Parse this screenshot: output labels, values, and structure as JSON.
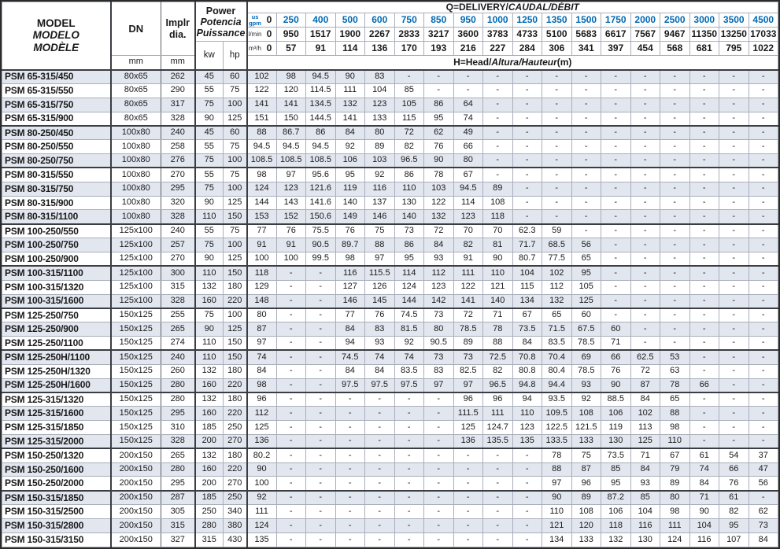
{
  "colors": {
    "accent_blue": "#0069b4",
    "stripe": "#e2e6ef"
  },
  "table": {
    "header": {
      "model": {
        "en": "MODEL",
        "es": "MODELO",
        "fr": "MODÈLE"
      },
      "dn": "DN",
      "impeller": {
        "line1": "Implr",
        "line2": "dia."
      },
      "power": {
        "en": "Power",
        "es": "Potencia",
        "fr": "Puissance"
      },
      "units": {
        "mm_dn": "mm",
        "mm_impeller": "mm",
        "kw": "kw",
        "hp": "hp"
      },
      "q_title": {
        "prefix": "Q=DELIVERY/",
        "italic": "CAUDAL/DÉBIT"
      },
      "h_title": {
        "prefix": "H=Head/",
        "italic": "Altura/Hauteur",
        "suffix": "(m)"
      },
      "flow_rows": [
        {
          "unit": "us gpm",
          "values": [
            "0",
            "250",
            "400",
            "500",
            "600",
            "750",
            "850",
            "950",
            "1000",
            "1250",
            "1350",
            "1500",
            "1750",
            "2000",
            "2500",
            "3000",
            "3500",
            "4500"
          ]
        },
        {
          "unit": "l/min",
          "values": [
            "0",
            "950",
            "1517",
            "1900",
            "2267",
            "2833",
            "3217",
            "3600",
            "3783",
            "4733",
            "5100",
            "5683",
            "6617",
            "7567",
            "9467",
            "11350",
            "13250",
            "17033"
          ]
        },
        {
          "unit": "m³/h",
          "values": [
            "0",
            "57",
            "91",
            "114",
            "136",
            "170",
            "193",
            "216",
            "227",
            "284",
            "306",
            "341",
            "397",
            "454",
            "568",
            "681",
            "795",
            "1022"
          ]
        }
      ]
    },
    "rows": [
      {
        "model": "PSM 65-315/450",
        "dn": "80x65",
        "dia": "262",
        "kw": "45",
        "hp": "60",
        "group": false,
        "head": [
          "102",
          "98",
          "94.5",
          "90",
          "83",
          "-",
          "-",
          "-",
          "-",
          "-",
          "-",
          "-",
          "-",
          "-",
          "-",
          "-",
          "-",
          "-"
        ]
      },
      {
        "model": "PSM 65-315/550",
        "dn": "80x65",
        "dia": "290",
        "kw": "55",
        "hp": "75",
        "group": false,
        "head": [
          "122",
          "120",
          "114.5",
          "111",
          "104",
          "85",
          "-",
          "-",
          "-",
          "-",
          "-",
          "-",
          "-",
          "-",
          "-",
          "-",
          "-",
          "-"
        ]
      },
      {
        "model": "PSM 65-315/750",
        "dn": "80x65",
        "dia": "317",
        "kw": "75",
        "hp": "100",
        "group": false,
        "head": [
          "141",
          "141",
          "134.5",
          "132",
          "123",
          "105",
          "86",
          "64",
          "-",
          "-",
          "-",
          "-",
          "-",
          "-",
          "-",
          "-",
          "-",
          "-"
        ]
      },
      {
        "model": "PSM 65-315/900",
        "dn": "80x65",
        "dia": "328",
        "kw": "90",
        "hp": "125",
        "group": false,
        "head": [
          "151",
          "150",
          "144.5",
          "141",
          "133",
          "115",
          "95",
          "74",
          "-",
          "-",
          "-",
          "-",
          "-",
          "-",
          "-",
          "-",
          "-",
          "-"
        ]
      },
      {
        "model": "PSM 80-250/450",
        "dn": "100x80",
        "dia": "240",
        "kw": "45",
        "hp": "60",
        "group": true,
        "head": [
          "88",
          "86.7",
          "86",
          "84",
          "80",
          "72",
          "62",
          "49",
          "-",
          "-",
          "-",
          "-",
          "-",
          "-",
          "-",
          "-",
          "-",
          "-"
        ]
      },
      {
        "model": "PSM 80-250/550",
        "dn": "100x80",
        "dia": "258",
        "kw": "55",
        "hp": "75",
        "group": false,
        "head": [
          "94.5",
          "94.5",
          "94.5",
          "92",
          "89",
          "82",
          "76",
          "66",
          "-",
          "-",
          "-",
          "-",
          "-",
          "-",
          "-",
          "-",
          "-",
          "-"
        ]
      },
      {
        "model": "PSM 80-250/750",
        "dn": "100x80",
        "dia": "276",
        "kw": "75",
        "hp": "100",
        "group": false,
        "head": [
          "108.5",
          "108.5",
          "108.5",
          "106",
          "103",
          "96.5",
          "90",
          "80",
          "-",
          "-",
          "-",
          "-",
          "-",
          "-",
          "-",
          "-",
          "-",
          "-"
        ]
      },
      {
        "model": "PSM 80-315/550",
        "dn": "100x80",
        "dia": "270",
        "kw": "55",
        "hp": "75",
        "group": true,
        "head": [
          "98",
          "97",
          "95.6",
          "95",
          "92",
          "86",
          "78",
          "67",
          "-",
          "-",
          "-",
          "-",
          "-",
          "-",
          "-",
          "-",
          "-",
          "-"
        ]
      },
      {
        "model": "PSM 80-315/750",
        "dn": "100x80",
        "dia": "295",
        "kw": "75",
        "hp": "100",
        "group": false,
        "head": [
          "124",
          "123",
          "121.6",
          "119",
          "116",
          "110",
          "103",
          "94.5",
          "89",
          "-",
          "-",
          "-",
          "-",
          "-",
          "-",
          "-",
          "-",
          "-"
        ]
      },
      {
        "model": "PSM 80-315/900",
        "dn": "100x80",
        "dia": "320",
        "kw": "90",
        "hp": "125",
        "group": false,
        "head": [
          "144",
          "143",
          "141.6",
          "140",
          "137",
          "130",
          "122",
          "114",
          "108",
          "-",
          "-",
          "-",
          "-",
          "-",
          "-",
          "-",
          "-",
          "-"
        ]
      },
      {
        "model": "PSM 80-315/1100",
        "dn": "100x80",
        "dia": "328",
        "kw": "110",
        "hp": "150",
        "group": false,
        "head": [
          "153",
          "152",
          "150.6",
          "149",
          "146",
          "140",
          "132",
          "123",
          "118",
          "-",
          "-",
          "-",
          "-",
          "-",
          "-",
          "-",
          "-",
          "-"
        ]
      },
      {
        "model": "PSM 100-250/550",
        "dn": "125x100",
        "dia": "240",
        "kw": "55",
        "hp": "75",
        "group": true,
        "head": [
          "77",
          "76",
          "75.5",
          "76",
          "75",
          "73",
          "72",
          "70",
          "70",
          "62.3",
          "59",
          "-",
          "-",
          "-",
          "-",
          "-",
          "-",
          "-"
        ]
      },
      {
        "model": "PSM 100-250/750",
        "dn": "125x100",
        "dia": "257",
        "kw": "75",
        "hp": "100",
        "group": false,
        "head": [
          "91",
          "91",
          "90.5",
          "89.7",
          "88",
          "86",
          "84",
          "82",
          "81",
          "71.7",
          "68.5",
          "56",
          "-",
          "-",
          "-",
          "-",
          "-",
          "-"
        ]
      },
      {
        "model": "PSM 100-250/900",
        "dn": "125x100",
        "dia": "270",
        "kw": "90",
        "hp": "125",
        "group": false,
        "head": [
          "100",
          "100",
          "99.5",
          "98",
          "97",
          "95",
          "93",
          "91",
          "90",
          "80.7",
          "77.5",
          "65",
          "-",
          "-",
          "-",
          "-",
          "-",
          "-"
        ]
      },
      {
        "model": "PSM 100-315/1100",
        "dn": "125x100",
        "dia": "300",
        "kw": "110",
        "hp": "150",
        "group": true,
        "head": [
          "118",
          "-",
          "-",
          "116",
          "115.5",
          "114",
          "112",
          "111",
          "110",
          "104",
          "102",
          "95",
          "-",
          "-",
          "-",
          "-",
          "-",
          "-"
        ]
      },
      {
        "model": "PSM 100-315/1320",
        "dn": "125x100",
        "dia": "315",
        "kw": "132",
        "hp": "180",
        "group": false,
        "head": [
          "129",
          "-",
          "-",
          "127",
          "126",
          "124",
          "123",
          "122",
          "121",
          "115",
          "112",
          "105",
          "-",
          "-",
          "-",
          "-",
          "-",
          "-"
        ]
      },
      {
        "model": "PSM 100-315/1600",
        "dn": "125x100",
        "dia": "328",
        "kw": "160",
        "hp": "220",
        "group": false,
        "head": [
          "148",
          "-",
          "-",
          "146",
          "145",
          "144",
          "142",
          "141",
          "140",
          "134",
          "132",
          "125",
          "-",
          "-",
          "-",
          "-",
          "-",
          "-"
        ]
      },
      {
        "model": "PSM 125-250/750",
        "dn": "150x125",
        "dia": "255",
        "kw": "75",
        "hp": "100",
        "group": true,
        "head": [
          "80",
          "-",
          "-",
          "77",
          "76",
          "74.5",
          "73",
          "72",
          "71",
          "67",
          "65",
          "60",
          "-",
          "-",
          "-",
          "-",
          "-",
          "-"
        ]
      },
      {
        "model": "PSM 125-250/900",
        "dn": "150x125",
        "dia": "265",
        "kw": "90",
        "hp": "125",
        "group": false,
        "head": [
          "87",
          "-",
          "-",
          "84",
          "83",
          "81.5",
          "80",
          "78.5",
          "78",
          "73.5",
          "71.5",
          "67.5",
          "60",
          "-",
          "-",
          "-",
          "-",
          "-"
        ]
      },
      {
        "model": "PSM 125-250/1100",
        "dn": "150x125",
        "dia": "274",
        "kw": "110",
        "hp": "150",
        "group": false,
        "head": [
          "97",
          "-",
          "-",
          "94",
          "93",
          "92",
          "90.5",
          "89",
          "88",
          "84",
          "83.5",
          "78.5",
          "71",
          "-",
          "-",
          "-",
          "-",
          "-"
        ]
      },
      {
        "model": "PSM 125-250H/1100",
        "dn": "150x125",
        "dia": "240",
        "kw": "110",
        "hp": "150",
        "group": true,
        "head": [
          "74",
          "-",
          "-",
          "74.5",
          "74",
          "74",
          "73",
          "73",
          "72.5",
          "70.8",
          "70.4",
          "69",
          "66",
          "62.5",
          "53",
          "-",
          "-",
          "-"
        ]
      },
      {
        "model": "PSM 125-250H/1320",
        "dn": "150x125",
        "dia": "260",
        "kw": "132",
        "hp": "180",
        "group": false,
        "head": [
          "84",
          "-",
          "-",
          "84",
          "84",
          "83.5",
          "83",
          "82.5",
          "82",
          "80.8",
          "80.4",
          "78.5",
          "76",
          "72",
          "63",
          "-",
          "-",
          "-"
        ]
      },
      {
        "model": "PSM 125-250H/1600",
        "dn": "150x125",
        "dia": "280",
        "kw": "160",
        "hp": "220",
        "group": false,
        "head": [
          "98",
          "-",
          "-",
          "97.5",
          "97.5",
          "97.5",
          "97",
          "97",
          "96.5",
          "94.8",
          "94.4",
          "93",
          "90",
          "87",
          "78",
          "66",
          "-",
          "-"
        ]
      },
      {
        "model": "PSM 125-315/1320",
        "dn": "150x125",
        "dia": "280",
        "kw": "132",
        "hp": "180",
        "group": true,
        "head": [
          "96",
          "-",
          "-",
          "-",
          "-",
          "-",
          "-",
          "96",
          "96",
          "94",
          "93.5",
          "92",
          "88.5",
          "84",
          "65",
          "-",
          "-",
          "-"
        ]
      },
      {
        "model": "PSM 125-315/1600",
        "dn": "150x125",
        "dia": "295",
        "kw": "160",
        "hp": "220",
        "group": false,
        "head": [
          "112",
          "-",
          "-",
          "-",
          "-",
          "-",
          "-",
          "111.5",
          "111",
          "110",
          "109.5",
          "108",
          "106",
          "102",
          "88",
          "-",
          "-",
          "-"
        ]
      },
      {
        "model": "PSM 125-315/1850",
        "dn": "150x125",
        "dia": "310",
        "kw": "185",
        "hp": "250",
        "group": false,
        "head": [
          "125",
          "-",
          "-",
          "-",
          "-",
          "-",
          "-",
          "125",
          "124.7",
          "123",
          "122.5",
          "121.5",
          "119",
          "113",
          "98",
          "-",
          "-",
          "-"
        ]
      },
      {
        "model": "PSM 125-315/2000",
        "dn": "150x125",
        "dia": "328",
        "kw": "200",
        "hp": "270",
        "group": false,
        "head": [
          "136",
          "-",
          "-",
          "-",
          "-",
          "-",
          "-",
          "136",
          "135.5",
          "135",
          "133.5",
          "133",
          "130",
          "125",
          "110",
          "-",
          "-",
          "-"
        ]
      },
      {
        "model": "PSM 150-250/1320",
        "dn": "200x150",
        "dia": "265",
        "kw": "132",
        "hp": "180",
        "group": true,
        "head": [
          "80.2",
          "-",
          "-",
          "-",
          "-",
          "-",
          "-",
          "-",
          "-",
          "-",
          "78",
          "75",
          "73.5",
          "71",
          "67",
          "61",
          "54",
          "37"
        ]
      },
      {
        "model": "PSM 150-250/1600",
        "dn": "200x150",
        "dia": "280",
        "kw": "160",
        "hp": "220",
        "group": false,
        "head": [
          "90",
          "-",
          "-",
          "-",
          "-",
          "-",
          "-",
          "-",
          "-",
          "-",
          "88",
          "87",
          "85",
          "84",
          "79",
          "74",
          "66",
          "47"
        ]
      },
      {
        "model": "PSM 150-250/2000",
        "dn": "200x150",
        "dia": "295",
        "kw": "200",
        "hp": "270",
        "group": false,
        "head": [
          "100",
          "-",
          "-",
          "-",
          "-",
          "-",
          "-",
          "-",
          "-",
          "-",
          "97",
          "96",
          "95",
          "93",
          "89",
          "84",
          "76",
          "56"
        ]
      },
      {
        "model": "PSM 150-315/1850",
        "dn": "200x150",
        "dia": "287",
        "kw": "185",
        "hp": "250",
        "group": true,
        "head": [
          "92",
          "-",
          "-",
          "-",
          "-",
          "-",
          "-",
          "-",
          "-",
          "-",
          "90",
          "89",
          "87.2",
          "85",
          "80",
          "71",
          "61",
          "-"
        ]
      },
      {
        "model": "PSM 150-315/2500",
        "dn": "200x150",
        "dia": "305",
        "kw": "250",
        "hp": "340",
        "group": false,
        "head": [
          "111",
          "-",
          "-",
          "-",
          "-",
          "-",
          "-",
          "-",
          "-",
          "-",
          "110",
          "108",
          "106",
          "104",
          "98",
          "90",
          "82",
          "62"
        ]
      },
      {
        "model": "PSM 150-315/2800",
        "dn": "200x150",
        "dia": "315",
        "kw": "280",
        "hp": "380",
        "group": false,
        "head": [
          "124",
          "-",
          "-",
          "-",
          "-",
          "-",
          "-",
          "-",
          "-",
          "-",
          "121",
          "120",
          "118",
          "116",
          "111",
          "104",
          "95",
          "73"
        ]
      },
      {
        "model": "PSM 150-315/3150",
        "dn": "200x150",
        "dia": "327",
        "kw": "315",
        "hp": "430",
        "group": false,
        "head": [
          "135",
          "-",
          "-",
          "-",
          "-",
          "-",
          "-",
          "-",
          "-",
          "-",
          "134",
          "133",
          "132",
          "130",
          "124",
          "116",
          "107",
          "84"
        ]
      }
    ]
  }
}
